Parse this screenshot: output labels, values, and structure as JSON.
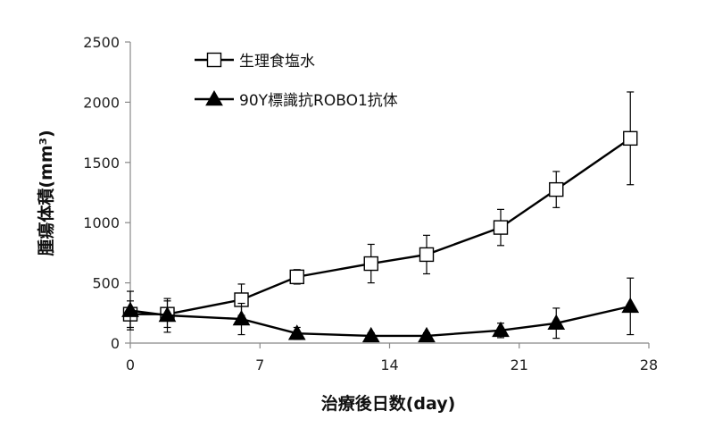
{
  "chart_data": {
    "type": "line",
    "title": "",
    "xlabel": "治療後日数(day)",
    "ylabel": "腫瘍体積(mm³)",
    "xlim": [
      0,
      28
    ],
    "ylim": [
      0,
      2500
    ],
    "xticks": [
      0,
      7,
      14,
      21,
      28
    ],
    "yticks": [
      0,
      500,
      1000,
      1500,
      2000,
      2500
    ],
    "grid": false,
    "legend_position": "top-left",
    "series": [
      {
        "name": "生理食塩水",
        "marker": "square-open",
        "color": "#000000",
        "x": [
          0,
          2,
          6,
          9,
          13,
          16,
          20,
          23,
          27
        ],
        "y": [
          240,
          240,
          360,
          550,
          660,
          735,
          960,
          1275,
          1700
        ],
        "err": [
          110,
          110,
          130,
          60,
          160,
          160,
          150,
          150,
          385
        ]
      },
      {
        "name": "90Y標識抗ROBO1抗体",
        "marker": "triangle-filled",
        "color": "#000000",
        "x": [
          0,
          2,
          6,
          9,
          13,
          16,
          20,
          23,
          27
        ],
        "y": [
          270,
          230,
          200,
          80,
          60,
          60,
          105,
          165,
          305
        ],
        "err": [
          160,
          140,
          130,
          50,
          25,
          25,
          60,
          125,
          235
        ]
      }
    ]
  }
}
